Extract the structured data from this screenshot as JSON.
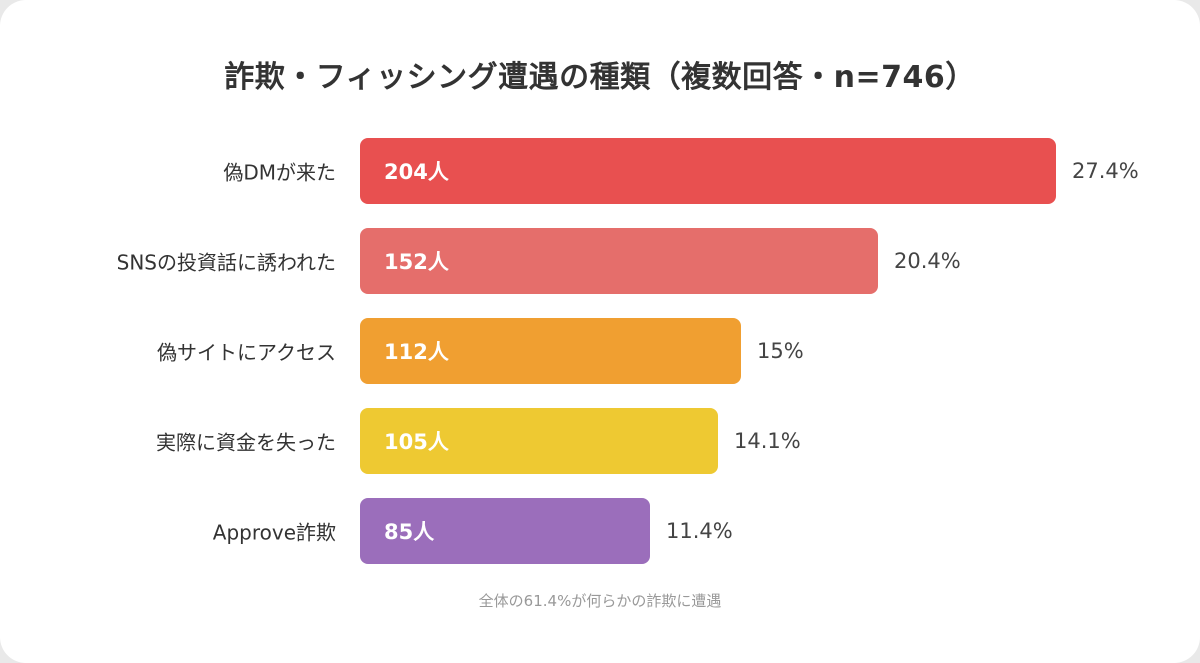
{
  "title": "詐欺・フィッシング遭遇の種類（複数回答・n=746）",
  "note": "全体の61.4%が何らかの詐欺に遭遇",
  "chart_data": {
    "type": "bar",
    "orientation": "horizontal",
    "title": "詐欺・フィッシング遭遇の種類（複数回答・n=746）",
    "categories": [
      "偽DMが来た",
      "SNSの投資話に誘われた",
      "偽サイトにアクセス",
      "実際に資金を失った",
      "Approve詐欺"
    ],
    "values": [
      204,
      152,
      112,
      105,
      85
    ],
    "count_labels": [
      "204人",
      "152人",
      "112人",
      "105人",
      "85人"
    ],
    "percent_values": [
      27.4,
      20.4,
      15,
      14.1,
      11.4
    ],
    "percent_labels": [
      "27.4%",
      "20.4%",
      "15%",
      "14.1%",
      "11.4%"
    ],
    "colors": [
      "#e85050",
      "#e56e6b",
      "#f09f31",
      "#eec932",
      "#9b6ebb"
    ],
    "xlim": [
      0,
      27.4
    ],
    "grid": false,
    "legend": "none"
  }
}
